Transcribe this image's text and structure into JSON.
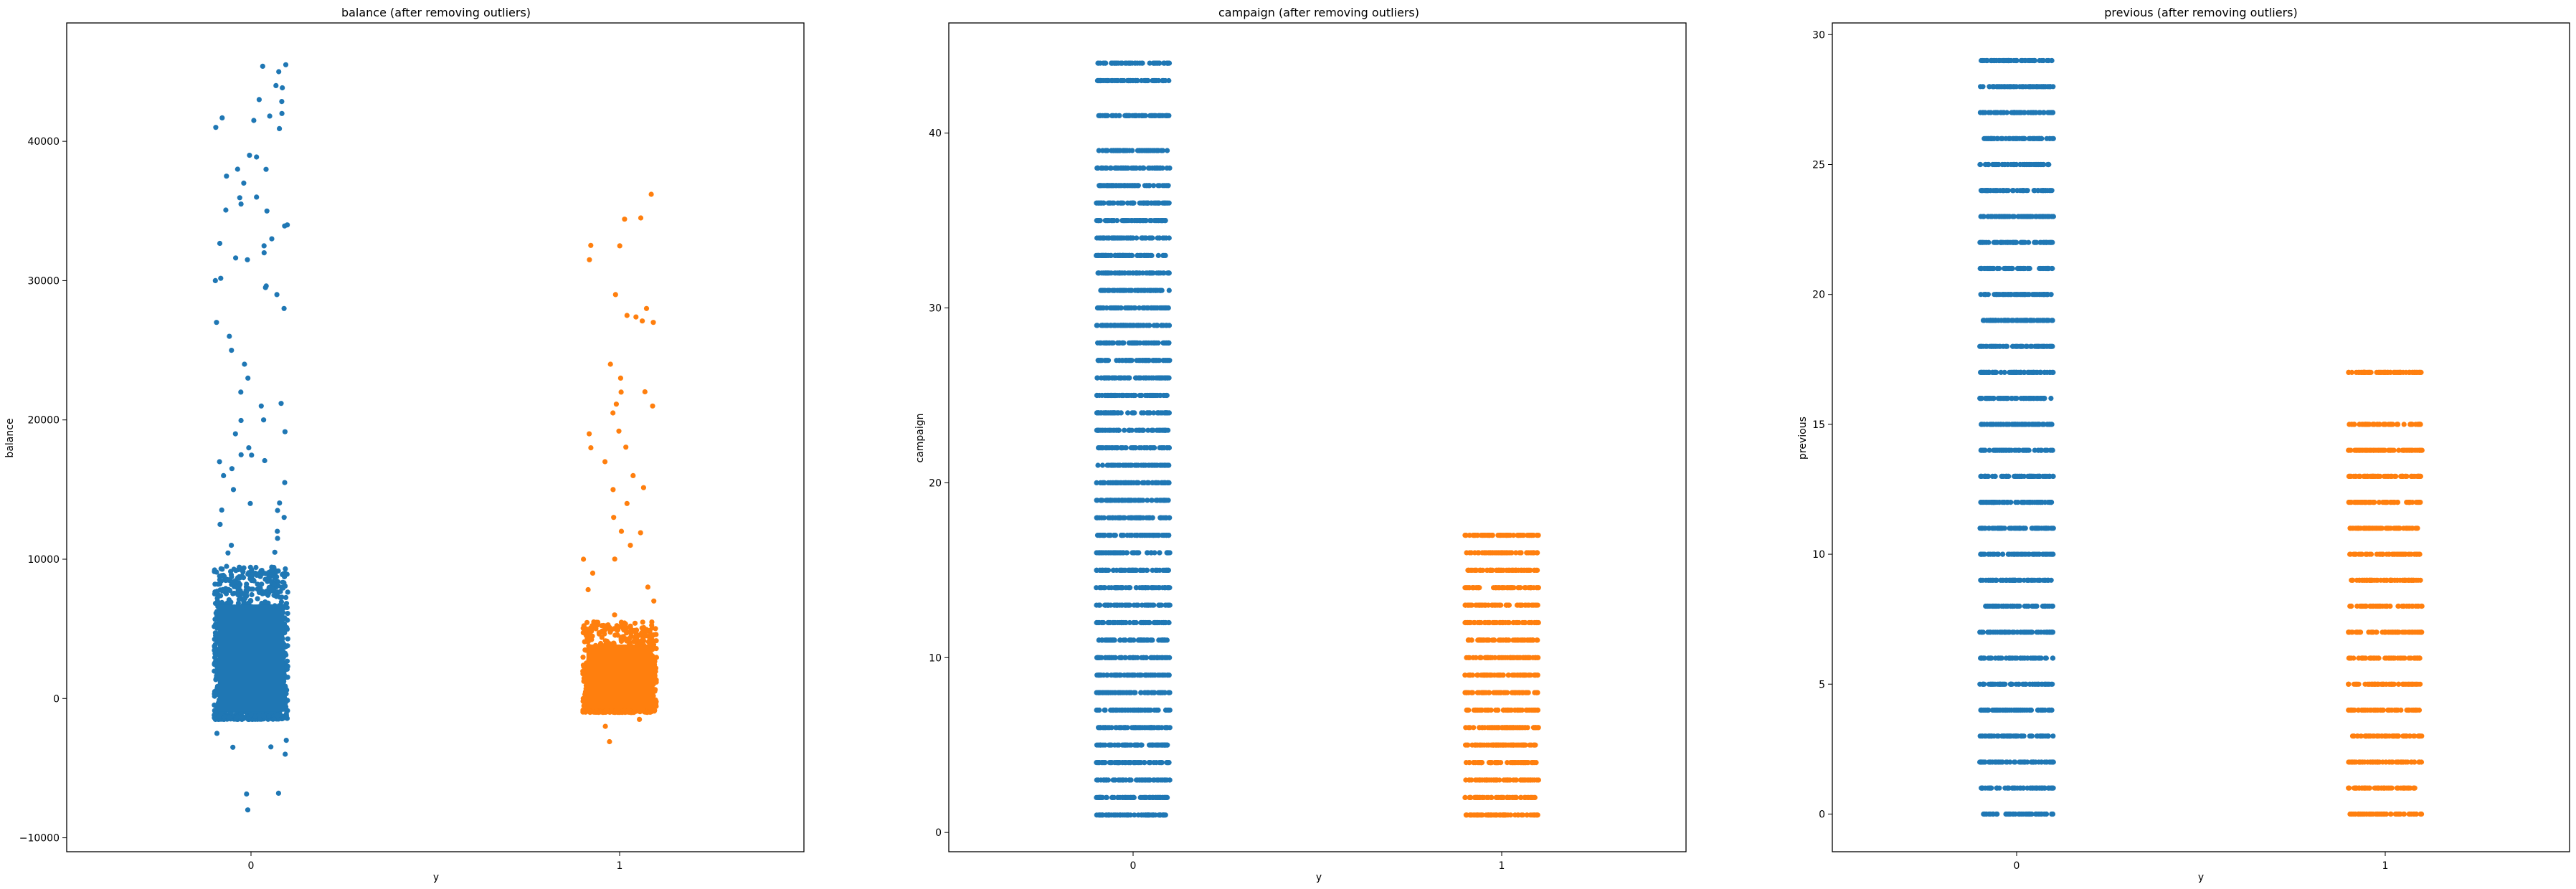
{
  "colors": {
    "class0": "#1f77b4",
    "class1": "#ff7f0e",
    "axes": "#000000"
  },
  "chart_data": [
    {
      "type": "scatter",
      "subtype": "strip",
      "title": "balance (after removing outliers)",
      "xlabel": "y",
      "ylabel": "balance",
      "categories": [
        "0",
        "1"
      ],
      "ylim": [
        -11000,
        48500
      ],
      "yticks": [
        -10000,
        0,
        10000,
        20000,
        30000,
        40000
      ],
      "ytick_labels": [
        "−10000",
        "0",
        "10000",
        "20000",
        "30000",
        "40000"
      ],
      "grid": false,
      "series": [
        {
          "category": "0",
          "dense_range": [
            -1500,
            9500
          ],
          "dense_density": 0.85,
          "tail_values": [
            -8000,
            -6800,
            -4000,
            -3500,
            -3000,
            -2500,
            10500,
            11000,
            11500,
            12000,
            12500,
            13000,
            13500,
            14000,
            15000,
            15500,
            16000,
            16500,
            17000,
            17500,
            18000,
            19000,
            20000,
            21000,
            22000,
            23000,
            24000,
            25000,
            26000,
            27000,
            28000,
            29000,
            29500,
            30000,
            31500,
            32000,
            32500,
            33000,
            34000,
            35000,
            35500,
            36000,
            37000,
            37500,
            38000,
            39000,
            41000,
            41500,
            42000,
            43000,
            44000,
            45000,
            45500
          ]
        },
        {
          "category": "1",
          "dense_range": [
            -1000,
            5500
          ],
          "dense_density": 0.6,
          "tail_values": [
            -3100,
            -2000,
            -1500,
            6000,
            7000,
            8000,
            9000,
            10000,
            11000,
            12000,
            13000,
            14000,
            15000,
            16000,
            17000,
            18000,
            19000,
            20500,
            21000,
            22000,
            23000,
            24000,
            27000,
            27500,
            28000,
            29000,
            31500,
            32500,
            34500,
            36200
          ]
        }
      ]
    },
    {
      "type": "scatter",
      "subtype": "strip",
      "title": "campaign (after removing outliers)",
      "xlabel": "y",
      "ylabel": "campaign",
      "categories": [
        "0",
        "1"
      ],
      "ylim": [
        -1.1,
        46.3
      ],
      "yticks": [
        0,
        10,
        20,
        30,
        40
      ],
      "ytick_labels": [
        "0",
        "10",
        "20",
        "30",
        "40"
      ],
      "grid": false,
      "series": [
        {
          "category": "0",
          "values": [
            1,
            2,
            3,
            4,
            5,
            6,
            7,
            8,
            9,
            10,
            11,
            12,
            13,
            14,
            15,
            16,
            17,
            18,
            19,
            20,
            21,
            22,
            23,
            24,
            25,
            26,
            27,
            28,
            29,
            30,
            31,
            32,
            33,
            34,
            35,
            36,
            37,
            38,
            39,
            41,
            43,
            44
          ]
        },
        {
          "category": "1",
          "values": [
            1,
            2,
            3,
            4,
            5,
            6,
            7,
            8,
            9,
            10,
            11,
            12,
            13,
            14,
            15,
            16,
            17
          ]
        }
      ]
    },
    {
      "type": "scatter",
      "subtype": "strip",
      "title": "previous (after removing outliers)",
      "xlabel": "y",
      "ylabel": "previous",
      "categories": [
        "0",
        "1"
      ],
      "ylim": [
        -1.45,
        30.45
      ],
      "yticks": [
        0,
        5,
        10,
        15,
        20,
        25,
        30
      ],
      "ytick_labels": [
        "0",
        "5",
        "10",
        "15",
        "20",
        "25",
        "30"
      ],
      "grid": false,
      "series": [
        {
          "category": "0",
          "values": [
            0,
            1,
            2,
            3,
            4,
            5,
            6,
            7,
            8,
            9,
            10,
            11,
            12,
            13,
            14,
            15,
            16,
            17,
            18,
            19,
            20,
            21,
            22,
            23,
            24,
            25,
            26,
            27,
            28,
            29
          ]
        },
        {
          "category": "1",
          "values": [
            0,
            1,
            2,
            3,
            4,
            5,
            6,
            7,
            8,
            9,
            10,
            11,
            12,
            13,
            14,
            15,
            17
          ]
        }
      ]
    }
  ]
}
